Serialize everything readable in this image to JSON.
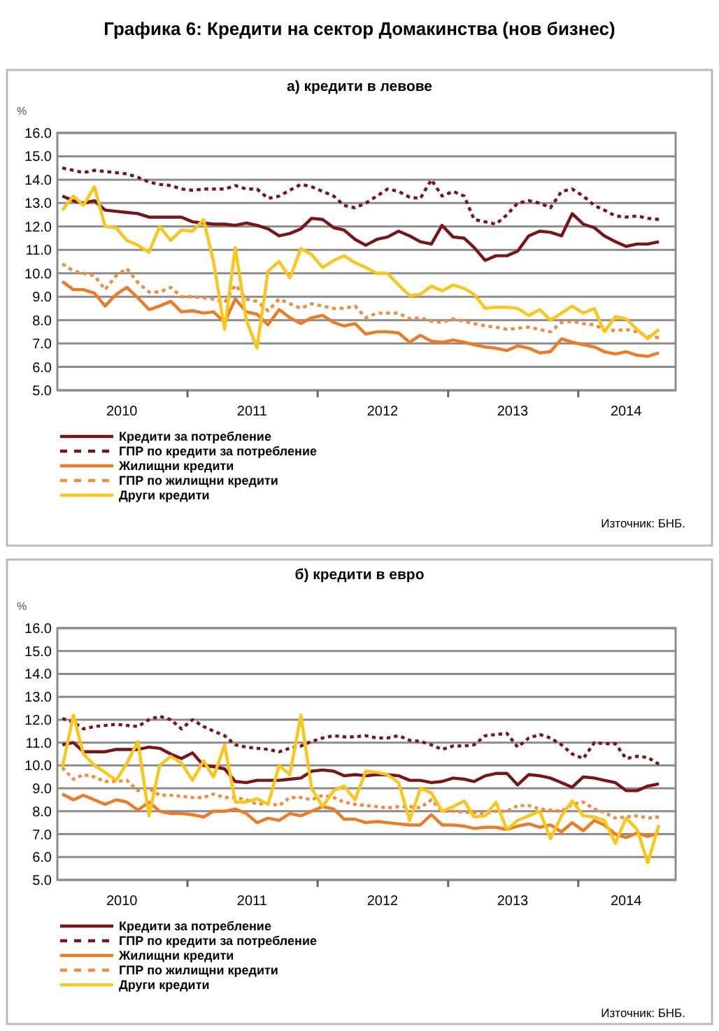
{
  "chart_data": [
    {
      "type": "line",
      "title": "Графика 6: Кредити на сектор Домакинства (нов бизнес)",
      "subtitle": "а) кредити в левове",
      "ylabel": "%",
      "annotations": [
        "Източник: БНБ."
      ],
      "grid": "y",
      "legend": "bottom",
      "marker": "none",
      "x": [
        "2010-01-15",
        "2010-02-15",
        "2010-03-15",
        "2010-04-15",
        "2010-05-15",
        "2010-06-15",
        "2010-07-15",
        "2010-08-15",
        "2010-09-15",
        "2010-10-15",
        "2010-11-15",
        "2010-12-15",
        "2011-01-15",
        "2011-02-15",
        "2011-03-15",
        "2011-04-15",
        "2011-05-15",
        "2011-06-15",
        "2011-07-15",
        "2011-08-15",
        "2011-09-15",
        "2011-10-15",
        "2011-11-15",
        "2011-12-15",
        "2012-01-15",
        "2012-02-15",
        "2012-03-15",
        "2012-04-15",
        "2012-05-15",
        "2012-06-15",
        "2012-07-15",
        "2012-08-15",
        "2012-09-15",
        "2012-10-15",
        "2012-11-15",
        "2012-12-15",
        "2013-01-15",
        "2013-02-15",
        "2013-03-15",
        "2013-04-15",
        "2013-05-15",
        "2013-06-15",
        "2013-07-15",
        "2013-08-15",
        "2013-09-15",
        "2013-10-15",
        "2013-11-15",
        "2013-12-15",
        "2014-01-15",
        "2014-02-15",
        "2014-03-15",
        "2014-04-15",
        "2014-05-15",
        "2014-06-15",
        "2014-07-15",
        "2014-08-15"
      ],
      "xlim": [
        "2010-01-01",
        "2014-10-01"
      ],
      "xticks": [
        {
          "value": "2010-07-01",
          "label": "2010"
        },
        {
          "value": "2011-01-01",
          "label": null
        },
        {
          "value": "2011-07-01",
          "label": "2011"
        },
        {
          "value": "2012-01-01",
          "label": null
        },
        {
          "value": "2012-07-01",
          "label": "2012"
        },
        {
          "value": "2013-01-01",
          "label": null
        },
        {
          "value": "2013-07-01",
          "label": "2013"
        },
        {
          "value": "2014-01-01",
          "label": null
        },
        {
          "value": "2014-05-15",
          "label": "2014"
        }
      ],
      "ylim": [
        5,
        16
      ],
      "yticks": [
        {
          "value": 5,
          "label": "5.0"
        },
        {
          "value": 6,
          "label": "6.0"
        },
        {
          "value": 7,
          "label": "7.0"
        },
        {
          "value": 8,
          "label": "8.0"
        },
        {
          "value": 9,
          "label": "9.0"
        },
        {
          "value": 10,
          "label": "10.0"
        },
        {
          "value": 11,
          "label": "11.0"
        },
        {
          "value": 12,
          "label": "12.0"
        },
        {
          "value": 13,
          "label": "13.0"
        },
        {
          "value": 14,
          "label": "14.0"
        },
        {
          "value": 15,
          "label": "15.0"
        },
        {
          "value": 16,
          "label": "16.0"
        }
      ],
      "series": [
        {
          "name": "Кредити за потребление",
          "color": "#7b1416",
          "line_style": "solid",
          "values": [
            13.3,
            13.1,
            13.0,
            13.1,
            12.7,
            12.65,
            12.6,
            12.55,
            12.4,
            12.4,
            12.4,
            12.4,
            12.2,
            12.15,
            12.1,
            12.1,
            12.05,
            12.15,
            12.05,
            11.9,
            11.6,
            11.7,
            11.9,
            12.35,
            12.3,
            11.95,
            11.85,
            11.45,
            11.2,
            11.45,
            11.55,
            11.8,
            11.6,
            11.35,
            11.25,
            12.05,
            11.55,
            11.5,
            11.1,
            10.55,
            10.75,
            10.75,
            10.95,
            11.6,
            11.8,
            11.75,
            11.6,
            12.55,
            12.1,
            11.95,
            11.6,
            11.35,
            11.15,
            11.25,
            11.25,
            11.35
          ]
        },
        {
          "name": "ГПР по кредити за потребление",
          "color": "#7b1416",
          "line_style": "dashed",
          "values": [
            14.5,
            14.4,
            14.3,
            14.4,
            14.35,
            14.3,
            14.25,
            14.1,
            13.9,
            13.8,
            13.75,
            13.6,
            13.55,
            13.6,
            13.6,
            13.6,
            13.75,
            13.6,
            13.6,
            13.2,
            13.3,
            13.55,
            13.8,
            13.7,
            13.5,
            13.3,
            12.9,
            12.8,
            13.0,
            13.3,
            13.6,
            13.5,
            13.25,
            13.2,
            14.0,
            13.3,
            13.5,
            13.3,
            12.3,
            12.2,
            12.1,
            12.5,
            13.0,
            13.1,
            13.0,
            12.8,
            13.5,
            13.6,
            13.3,
            12.9,
            12.7,
            12.45,
            12.4,
            12.45,
            12.35,
            12.3
          ]
        },
        {
          "name": "Жилищни кредити",
          "color": "#f07a22",
          "line_style": "solid",
          "values": [
            9.65,
            9.3,
            9.3,
            9.15,
            8.6,
            9.1,
            9.4,
            8.95,
            8.45,
            8.6,
            8.8,
            8.35,
            8.4,
            8.3,
            8.35,
            7.9,
            8.9,
            8.35,
            8.25,
            7.8,
            8.45,
            8.1,
            7.85,
            8.1,
            8.2,
            7.9,
            7.75,
            7.85,
            7.4,
            7.5,
            7.5,
            7.45,
            7.05,
            7.35,
            7.1,
            7.05,
            7.15,
            7.05,
            6.95,
            6.85,
            6.8,
            6.7,
            6.9,
            6.8,
            6.6,
            6.65,
            7.2,
            7.05,
            6.95,
            6.85,
            6.65,
            6.55,
            6.65,
            6.5,
            6.45,
            6.6
          ]
        },
        {
          "name": "ГПР по жилищни кредити",
          "color": "#f58a3c",
          "line_style": "dashed",
          "values": [
            10.4,
            10.1,
            10.0,
            9.9,
            9.3,
            9.9,
            10.2,
            9.6,
            9.2,
            9.2,
            9.4,
            9.0,
            9.0,
            8.95,
            8.9,
            8.75,
            9.5,
            8.9,
            8.8,
            8.4,
            8.9,
            8.7,
            8.5,
            8.7,
            8.6,
            8.5,
            8.5,
            8.6,
            8.1,
            8.3,
            8.3,
            8.3,
            8.05,
            8.1,
            7.95,
            7.9,
            8.05,
            7.95,
            7.85,
            7.75,
            7.7,
            7.6,
            7.65,
            7.7,
            7.6,
            7.5,
            7.9,
            7.95,
            7.85,
            7.8,
            7.6,
            7.55,
            7.6,
            7.5,
            7.3,
            7.25
          ]
        },
        {
          "name": "Други кредити",
          "color": "#fdc515",
          "line_style": "solid",
          "values": [
            12.7,
            13.3,
            12.9,
            13.7,
            12.0,
            11.95,
            11.4,
            11.2,
            10.9,
            12.0,
            11.4,
            11.85,
            11.8,
            12.3,
            10.5,
            7.6,
            11.1,
            8.0,
            6.8,
            10.1,
            10.5,
            9.8,
            11.05,
            10.8,
            10.25,
            10.55,
            10.75,
            10.45,
            10.25,
            10.0,
            10.0,
            9.5,
            9.05,
            9.1,
            9.45,
            9.25,
            9.5,
            9.35,
            9.1,
            8.5,
            8.55,
            8.55,
            8.5,
            8.2,
            8.45,
            8.0,
            8.3,
            8.6,
            8.3,
            8.5,
            7.5,
            8.15,
            8.05,
            7.6,
            7.2,
            7.6
          ]
        }
      ]
    },
    {
      "type": "line",
      "title": "б) кредити в евро",
      "ylabel": "%",
      "annotations": [
        "Източник: БНБ."
      ],
      "grid": "y",
      "legend": "bottom",
      "marker": "none",
      "x": [
        "2010-01-15",
        "2010-02-15",
        "2010-03-15",
        "2010-04-15",
        "2010-05-15",
        "2010-06-15",
        "2010-07-15",
        "2010-08-15",
        "2010-09-15",
        "2010-10-15",
        "2010-11-15",
        "2010-12-15",
        "2011-01-15",
        "2011-02-15",
        "2011-03-15",
        "2011-04-15",
        "2011-05-15",
        "2011-06-15",
        "2011-07-15",
        "2011-08-15",
        "2011-09-15",
        "2011-10-15",
        "2011-11-15",
        "2011-12-15",
        "2012-01-15",
        "2012-02-15",
        "2012-03-15",
        "2012-04-15",
        "2012-05-15",
        "2012-06-15",
        "2012-07-15",
        "2012-08-15",
        "2012-09-15",
        "2012-10-15",
        "2012-11-15",
        "2012-12-15",
        "2013-01-15",
        "2013-02-15",
        "2013-03-15",
        "2013-04-15",
        "2013-05-15",
        "2013-06-15",
        "2013-07-15",
        "2013-08-15",
        "2013-09-15",
        "2013-10-15",
        "2013-11-15",
        "2013-12-15",
        "2014-01-15",
        "2014-02-15",
        "2014-03-15",
        "2014-04-15",
        "2014-05-15",
        "2014-06-15",
        "2014-07-15",
        "2014-08-15"
      ],
      "xlim": [
        "2010-01-01",
        "2014-10-01"
      ],
      "xticks": [
        {
          "value": "2010-07-01",
          "label": "2010"
        },
        {
          "value": "2011-01-01",
          "label": null
        },
        {
          "value": "2011-07-01",
          "label": "2011"
        },
        {
          "value": "2012-01-01",
          "label": null
        },
        {
          "value": "2012-07-01",
          "label": "2012"
        },
        {
          "value": "2013-01-01",
          "label": null
        },
        {
          "value": "2013-07-01",
          "label": "2013"
        },
        {
          "value": "2014-01-01",
          "label": null
        },
        {
          "value": "2014-05-15",
          "label": "2014"
        }
      ],
      "ylim": [
        5,
        16
      ],
      "yticks": [
        {
          "value": 5,
          "label": "5.0"
        },
        {
          "value": 6,
          "label": "6.0"
        },
        {
          "value": 7,
          "label": "7.0"
        },
        {
          "value": 8,
          "label": "8.0"
        },
        {
          "value": 9,
          "label": "9.0"
        },
        {
          "value": 10,
          "label": "10.0"
        },
        {
          "value": 11,
          "label": "11.0"
        },
        {
          "value": 12,
          "label": "12.0"
        },
        {
          "value": 13,
          "label": "13.0"
        },
        {
          "value": 14,
          "label": "14.0"
        },
        {
          "value": 15,
          "label": "15.0"
        },
        {
          "value": 16,
          "label": "16.0"
        }
      ],
      "series": [
        {
          "name": "Кредити за потребление",
          "color": "#7b1416",
          "line_style": "solid",
          "values": [
            10.9,
            11.0,
            10.6,
            10.6,
            10.6,
            10.7,
            10.7,
            10.7,
            10.8,
            10.75,
            10.5,
            10.3,
            10.55,
            10.0,
            9.95,
            9.85,
            9.3,
            9.25,
            9.35,
            9.35,
            9.35,
            9.4,
            9.45,
            9.75,
            9.8,
            9.75,
            9.55,
            9.6,
            9.55,
            9.6,
            9.6,
            9.55,
            9.35,
            9.35,
            9.25,
            9.3,
            9.45,
            9.4,
            9.3,
            9.55,
            9.65,
            9.65,
            9.15,
            9.6,
            9.55,
            9.45,
            9.25,
            9.05,
            9.5,
            9.45,
            9.35,
            9.25,
            8.9,
            8.9,
            9.1,
            9.2
          ]
        },
        {
          "name": "ГПР по кредити за потребление",
          "color": "#7b1416",
          "line_style": "dashed",
          "values": [
            12.05,
            11.9,
            11.6,
            11.7,
            11.75,
            11.8,
            11.75,
            11.7,
            12.0,
            12.15,
            12.0,
            11.6,
            12.0,
            11.7,
            11.5,
            11.3,
            10.9,
            10.8,
            10.75,
            10.7,
            10.6,
            10.75,
            10.85,
            11.05,
            11.2,
            11.3,
            11.25,
            11.25,
            11.3,
            11.2,
            11.2,
            11.3,
            11.1,
            11.05,
            10.9,
            10.7,
            10.85,
            10.85,
            10.9,
            11.3,
            11.35,
            11.4,
            10.8,
            11.2,
            11.35,
            11.2,
            10.9,
            10.5,
            10.3,
            11.0,
            10.95,
            10.95,
            10.3,
            10.4,
            10.35,
            10.05
          ]
        },
        {
          "name": "Жилищни кредити",
          "color": "#f07a22",
          "line_style": "solid",
          "values": [
            8.75,
            8.5,
            8.7,
            8.5,
            8.3,
            8.5,
            8.4,
            8.05,
            8.4,
            8.0,
            7.9,
            7.9,
            7.85,
            7.75,
            8.0,
            8.0,
            8.1,
            7.9,
            7.5,
            7.7,
            7.6,
            7.9,
            7.8,
            8.0,
            8.2,
            8.1,
            7.65,
            7.65,
            7.5,
            7.55,
            7.5,
            7.45,
            7.4,
            7.4,
            7.85,
            7.4,
            7.4,
            7.35,
            7.25,
            7.3,
            7.3,
            7.2,
            7.35,
            7.45,
            7.3,
            7.4,
            7.1,
            7.5,
            7.15,
            7.6,
            7.4,
            7.0,
            6.85,
            7.05,
            6.9,
            7.05
          ]
        },
        {
          "name": "ГПР по жилищни кредити",
          "color": "#f58a3c",
          "line_style": "dashed",
          "values": [
            9.9,
            9.4,
            9.6,
            9.5,
            9.3,
            9.3,
            9.35,
            8.9,
            9.0,
            8.7,
            8.7,
            8.65,
            8.6,
            8.6,
            8.75,
            8.6,
            8.6,
            8.5,
            8.3,
            8.35,
            8.25,
            8.6,
            8.6,
            8.5,
            8.7,
            8.6,
            8.4,
            8.3,
            8.25,
            8.2,
            8.15,
            8.2,
            8.2,
            8.15,
            8.5,
            8.0,
            8.0,
            7.95,
            7.95,
            7.9,
            8.0,
            8.0,
            8.25,
            8.25,
            8.1,
            8.05,
            8.0,
            8.3,
            8.4,
            8.1,
            7.95,
            7.7,
            7.75,
            7.8,
            7.7,
            7.75
          ]
        },
        {
          "name": "Други кредити",
          "color": "#fdc515",
          "line_style": "solid",
          "values": [
            9.9,
            12.2,
            10.5,
            10.0,
            9.7,
            9.35,
            10.1,
            11.05,
            7.8,
            10.0,
            10.4,
            10.1,
            9.35,
            10.2,
            9.5,
            10.9,
            8.4,
            8.4,
            8.55,
            8.3,
            10.0,
            9.6,
            12.2,
            9.0,
            8.2,
            8.9,
            9.1,
            8.5,
            9.75,
            9.7,
            9.6,
            9.25,
            7.6,
            9.0,
            8.8,
            8.0,
            8.2,
            8.45,
            7.75,
            7.8,
            8.4,
            7.2,
            7.6,
            7.8,
            8.0,
            6.8,
            7.8,
            8.45,
            7.8,
            7.75,
            7.6,
            6.6,
            7.7,
            7.2,
            5.75,
            7.4
          ]
        }
      ]
    }
  ]
}
